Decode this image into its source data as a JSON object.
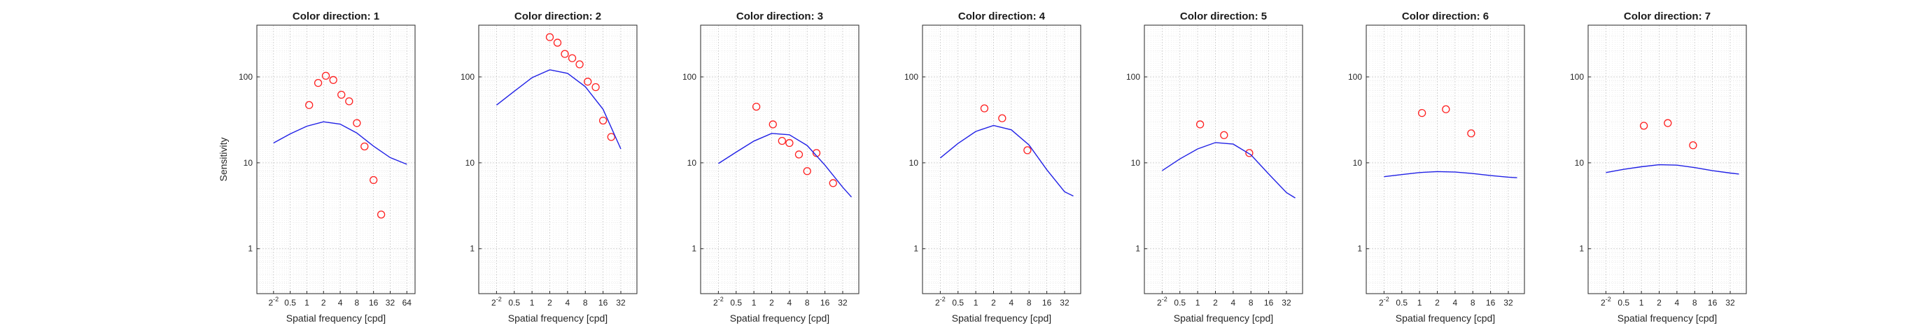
{
  "figure": {
    "ylabel": "Sensitivity",
    "xlabel": "Spatial frequency [cpd]"
  },
  "chart_data": [
    {
      "type": "scatter",
      "title": "Color direction: 1",
      "xscale": "log2",
      "yscale": "log10",
      "xlim": [
        0.125,
        90
      ],
      "ylim": [
        0.3,
        400
      ],
      "xticks": [
        "2-2",
        "0.5",
        "1",
        "2",
        "4",
        "8",
        "16",
        "32",
        "64"
      ],
      "yticks": [
        "1",
        "10",
        "100"
      ],
      "grid": true,
      "series": [
        {
          "kind": "markers",
          "x": [
            1.1,
            1.6,
            2.2,
            3.0,
            4.2,
            5.8,
            8.0,
            11.0,
            16.0,
            22.0
          ],
          "y": [
            47,
            85,
            103,
            92,
            62,
            52,
            29,
            15.5,
            6.3,
            2.5
          ]
        },
        {
          "kind": "line",
          "x": [
            0.25,
            0.5,
            1,
            2,
            4,
            8,
            16,
            32,
            64
          ],
          "y": [
            17,
            21.7,
            26.7,
            30,
            28.2,
            22.2,
            15.6,
            11.5,
            9.6
          ]
        }
      ]
    },
    {
      "type": "scatter",
      "title": "Color direction: 2",
      "xscale": "log2",
      "yscale": "log10",
      "xlim": [
        0.125,
        60
      ],
      "ylim": [
        0.3,
        400
      ],
      "xticks": [
        "2-2",
        "0.5",
        "1",
        "2",
        "4",
        "8",
        "16",
        "32"
      ],
      "yticks": [
        "1",
        "10",
        "100"
      ],
      "grid": true,
      "series": [
        {
          "kind": "markers",
          "x": [
            2.0,
            2.7,
            3.6,
            4.8,
            6.4,
            8.8,
            12.0,
            16.0,
            22.0
          ],
          "y": [
            290,
            250,
            185,
            165,
            140,
            88,
            76,
            31,
            20
          ]
        },
        {
          "kind": "line",
          "x": [
            0.25,
            0.5,
            1,
            2,
            4,
            8,
            16,
            32
          ],
          "y": [
            47,
            68,
            98,
            121,
            110,
            77,
            42,
            14.5
          ]
        }
      ]
    },
    {
      "type": "scatter",
      "title": "Color direction: 3",
      "xscale": "log2",
      "yscale": "log10",
      "xlim": [
        0.125,
        60
      ],
      "ylim": [
        0.3,
        400
      ],
      "xticks": [
        "2-2",
        "0.5",
        "1",
        "2",
        "4",
        "8",
        "16",
        "32"
      ],
      "yticks": [
        "1",
        "10",
        "100"
      ],
      "grid": true,
      "series": [
        {
          "kind": "markers",
          "x": [
            1.1,
            2.1,
            3.0,
            4.0,
            5.8,
            8.0,
            11.5,
            22.0
          ],
          "y": [
            45,
            28,
            18,
            17,
            12.5,
            8.0,
            13,
            5.8
          ]
        },
        {
          "kind": "line",
          "x": [
            0.25,
            0.5,
            1,
            2,
            4,
            8,
            16,
            32,
            45
          ],
          "y": [
            9.8,
            13.3,
            17.9,
            22.0,
            21.2,
            15.9,
            9.4,
            5.2,
            4.0
          ]
        }
      ]
    },
    {
      "type": "scatter",
      "title": "Color direction: 4",
      "xscale": "log2",
      "yscale": "log10",
      "xlim": [
        0.125,
        60
      ],
      "ylim": [
        0.3,
        400
      ],
      "xticks": [
        "2-2",
        "0.5",
        "1",
        "2",
        "4",
        "8",
        "16",
        "32"
      ],
      "yticks": [
        "1",
        "10",
        "100"
      ],
      "grid": true,
      "series": [
        {
          "kind": "markers",
          "x": [
            1.4,
            2.8,
            7.5
          ],
          "y": [
            43,
            33,
            14
          ]
        },
        {
          "kind": "line",
          "x": [
            0.25,
            0.5,
            1,
            2,
            4,
            8,
            16,
            32,
            45
          ],
          "y": [
            11.4,
            16.8,
            23.2,
            27.2,
            24.2,
            16.1,
            8.3,
            4.6,
            4.1
          ]
        }
      ]
    },
    {
      "type": "scatter",
      "title": "Color direction: 5",
      "xscale": "log2",
      "yscale": "log10",
      "xlim": [
        0.125,
        60
      ],
      "ylim": [
        0.3,
        400
      ],
      "xticks": [
        "2-2",
        "0.5",
        "1",
        "2",
        "4",
        "8",
        "16",
        "32"
      ],
      "yticks": [
        "1",
        "10",
        "100"
      ],
      "grid": true,
      "series": [
        {
          "kind": "markers",
          "x": [
            1.1,
            2.8,
            7.5
          ],
          "y": [
            28,
            21,
            13
          ]
        },
        {
          "kind": "line",
          "x": [
            0.25,
            0.5,
            1,
            2,
            4,
            8,
            16,
            32,
            45
          ],
          "y": [
            8.1,
            11.1,
            14.5,
            17.2,
            16.5,
            12.4,
            7.4,
            4.5,
            3.9
          ]
        }
      ]
    },
    {
      "type": "scatter",
      "title": "Color direction: 6",
      "xscale": "log2",
      "yscale": "log10",
      "xlim": [
        0.125,
        60
      ],
      "ylim": [
        0.3,
        400
      ],
      "xticks": [
        "2-2",
        "0.5",
        "1",
        "2",
        "4",
        "8",
        "16",
        "32"
      ],
      "yticks": [
        "1",
        "10",
        "100"
      ],
      "grid": true,
      "series": [
        {
          "kind": "markers",
          "x": [
            1.1,
            2.8,
            7.5
          ],
          "y": [
            38,
            42,
            22
          ]
        },
        {
          "kind": "line",
          "x": [
            0.25,
            0.5,
            1,
            2,
            4,
            8,
            16,
            32,
            45
          ],
          "y": [
            6.9,
            7.3,
            7.7,
            7.9,
            7.8,
            7.5,
            7.1,
            6.8,
            6.7
          ]
        }
      ]
    },
    {
      "type": "scatter",
      "title": "Color direction: 7",
      "xscale": "log2",
      "yscale": "log10",
      "xlim": [
        0.125,
        60
      ],
      "ylim": [
        0.3,
        400
      ],
      "xticks": [
        "2-2",
        "0.5",
        "1",
        "2",
        "4",
        "8",
        "16",
        "32"
      ],
      "yticks": [
        "1",
        "10",
        "100"
      ],
      "grid": true,
      "series": [
        {
          "kind": "markers",
          "x": [
            1.1,
            2.8,
            7.5
          ],
          "y": [
            27,
            29,
            16
          ]
        },
        {
          "kind": "line",
          "x": [
            0.25,
            0.5,
            1,
            2,
            4,
            8,
            16,
            32,
            45
          ],
          "y": [
            7.7,
            8.4,
            9.0,
            9.5,
            9.4,
            8.8,
            8.1,
            7.6,
            7.4
          ]
        }
      ]
    }
  ],
  "colors": {
    "curve": "#2020e6",
    "markers": "#ff2020",
    "grid": "#c8c8c8",
    "frame": "#262626"
  }
}
